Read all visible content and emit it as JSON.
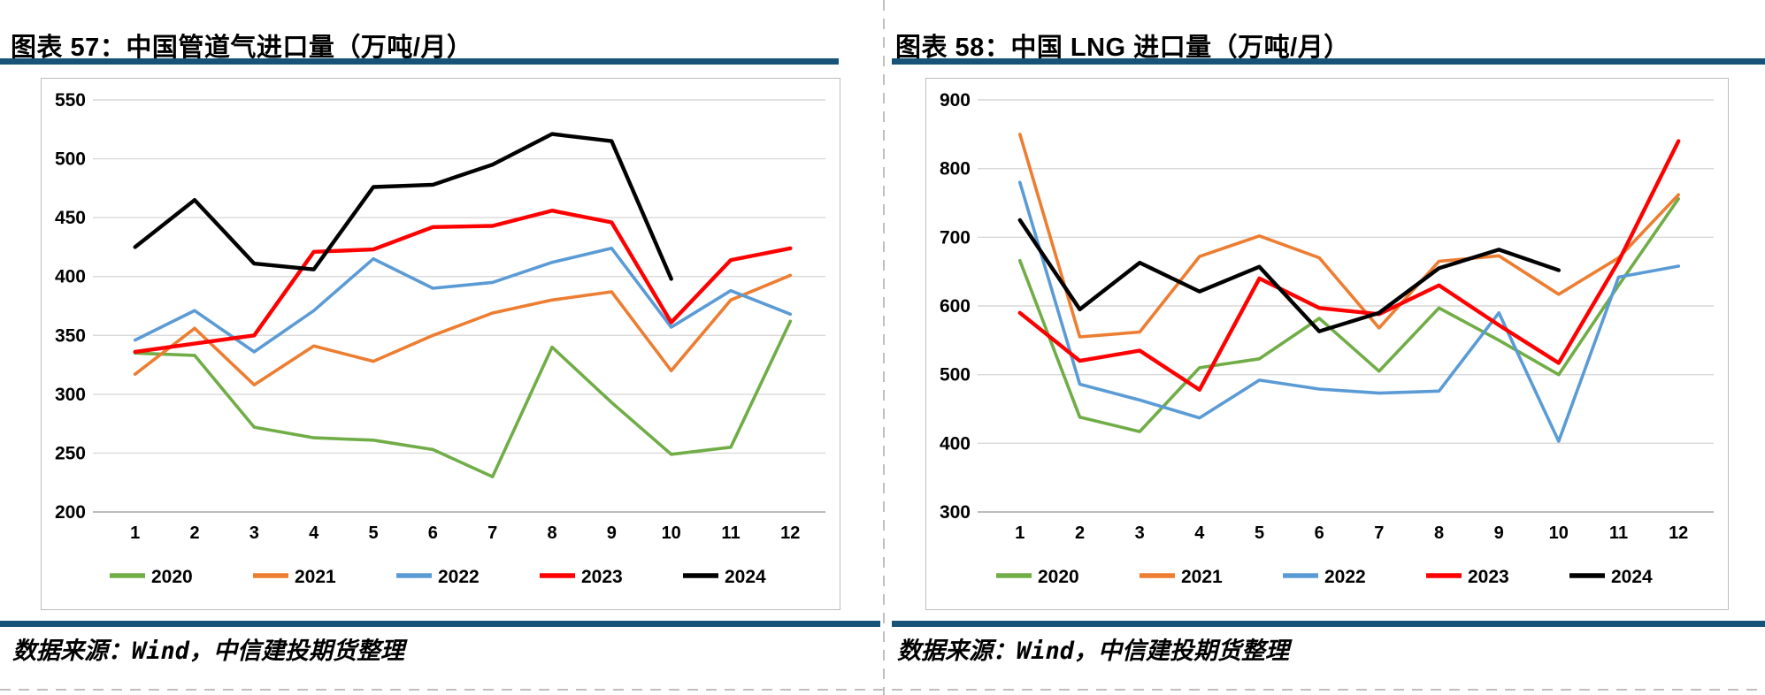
{
  "page": {
    "colors": {
      "rule_navy": "#175379",
      "gridline": "#d9d9d9",
      "axis_line": "#a6a6a6",
      "box_border": "#bdbdbd"
    }
  },
  "panels": [
    {
      "title": "图表 57：中国管道气进口量（万吨/月）",
      "source": "数据来源：Wind，中信建投期货整理"
    },
    {
      "title": "图表 58：中国 LNG 进口量（万吨/月）",
      "source": "数据来源：Wind，中信建投期货整理"
    }
  ],
  "chart_data": [
    {
      "type": "line",
      "title": "图表 57：中国管道气进口量（万吨/月）",
      "categories": [
        "1",
        "2",
        "3",
        "4",
        "5",
        "6",
        "7",
        "8",
        "9",
        "10",
        "11",
        "12"
      ],
      "xlabel": "",
      "ylabel": "",
      "ylim": [
        200,
        550
      ],
      "ystep": 50,
      "grid": true,
      "legend_position": "bottom",
      "series": [
        {
          "name": "2020",
          "color": "#70AD47",
          "width": 3.6,
          "values": [
            335,
            333,
            272,
            263,
            261,
            253,
            230,
            340,
            293,
            249,
            255,
            362
          ]
        },
        {
          "name": "2021",
          "color": "#ED7D31",
          "width": 3.6,
          "values": [
            317,
            356,
            308,
            341,
            328,
            350,
            369,
            380,
            387,
            320,
            380,
            401
          ]
        },
        {
          "name": "2022",
          "color": "#5B9BD5",
          "width": 3.6,
          "values": [
            346,
            371,
            336,
            371,
            415,
            390,
            395,
            412,
            424,
            357,
            388,
            368
          ]
        },
        {
          "name": "2023",
          "color": "#FF0000",
          "width": 4.4,
          "values": [
            336,
            343,
            350,
            421,
            423,
            442,
            443,
            456,
            446,
            361,
            414,
            424
          ]
        },
        {
          "name": "2024",
          "color": "#000000",
          "width": 4.4,
          "values": [
            425,
            465,
            411,
            406,
            476,
            478,
            495,
            521,
            515,
            398
          ]
        }
      ]
    },
    {
      "type": "line",
      "title": "图表 58：中国 LNG 进口量（万吨/月）",
      "categories": [
        "1",
        "2",
        "3",
        "4",
        "5",
        "6",
        "7",
        "8",
        "9",
        "10",
        "11",
        "12"
      ],
      "xlabel": "",
      "ylabel": "",
      "ylim": [
        300,
        900
      ],
      "ystep": 100,
      "grid": true,
      "legend_position": "bottom",
      "series": [
        {
          "name": "2020",
          "color": "#70AD47",
          "width": 3.6,
          "values": [
            666,
            438,
            417,
            510,
            523,
            582,
            505,
            597,
            550,
            500,
            630,
            756
          ]
        },
        {
          "name": "2021",
          "color": "#ED7D31",
          "width": 3.6,
          "values": [
            850,
            555,
            562,
            672,
            702,
            670,
            568,
            665,
            673,
            617,
            670,
            762
          ]
        },
        {
          "name": "2022",
          "color": "#5B9BD5",
          "width": 3.6,
          "values": [
            780,
            486,
            463,
            437,
            492,
            479,
            473,
            476,
            590,
            403,
            642,
            658
          ]
        },
        {
          "name": "2023",
          "color": "#FF0000",
          "width": 4.4,
          "values": [
            590,
            520,
            535,
            478,
            640,
            597,
            588,
            630,
            572,
            517,
            665,
            840
          ]
        },
        {
          "name": "2024",
          "color": "#000000",
          "width": 4.4,
          "values": [
            725,
            595,
            663,
            621,
            657,
            563,
            590,
            655,
            682,
            652
          ]
        }
      ]
    }
  ]
}
